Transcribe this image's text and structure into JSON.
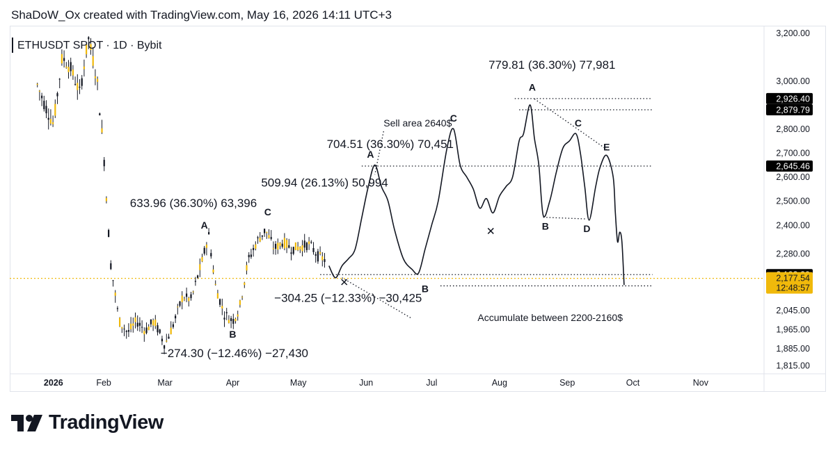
{
  "header": {
    "text": "ShaDoW_Ox created with TradingView.com, May 16, 2026 14:11 UTC+3"
  },
  "footer": {
    "brand": "TradingView",
    "logo_icon": "tradingview-logo-icon"
  },
  "chart_data": {
    "type": "line",
    "symbol_label": "ETHUSDT SPOT · 1D · Bybit",
    "colors": {
      "price_line": "#131722",
      "history_candles": "#f0b90b",
      "history_wicks": "#131722",
      "current_price": "#f0b90b",
      "price_tag": "#000000",
      "dotted": "#131722"
    },
    "ylim": [
      1780,
      3230
    ],
    "x_tick_labels": [
      "2026",
      "Feb",
      "Mar",
      "Apr",
      "May",
      "Jun",
      "Jul",
      "Aug",
      "Sep",
      "Oct",
      "Nov"
    ],
    "y_tick_labels": [
      {
        "value": 3200,
        "label": "3,200.00"
      },
      {
        "value": 3000,
        "label": "3,000.00"
      },
      {
        "value": 2800,
        "label": "2,800.00"
      },
      {
        "value": 2700,
        "label": "2,700.00"
      },
      {
        "value": 2600,
        "label": "2,600.00"
      },
      {
        "value": 2500,
        "label": "2,500.00"
      },
      {
        "value": 2400,
        "label": "2,400.00"
      },
      {
        "value": 2280,
        "label": "2,280.00"
      },
      {
        "value": 2045,
        "label": "2,045.00"
      },
      {
        "value": 1965,
        "label": "1,965.00"
      },
      {
        "value": 1885,
        "label": "1,885.00"
      },
      {
        "value": 1815,
        "label": "1,815.00"
      }
    ],
    "price_tags": [
      {
        "value": 2926.4,
        "label": "2,926.40"
      },
      {
        "value": 2879.79,
        "label": "2,879.79"
      },
      {
        "value": 2645.46,
        "label": "2,645.46"
      },
      {
        "value": 2193.2,
        "label": "2,193.20"
      },
      {
        "value": 2146.33,
        "label": "2,146.33"
      }
    ],
    "current_price": {
      "value": 2177.54,
      "label": "2,177.54",
      "countdown": "12:48:57"
    },
    "horizontal_levels": [
      {
        "value": 2926.4,
        "from": "Aug 8",
        "to": "Oct 10"
      },
      {
        "value": 2879.79,
        "from": "Aug 10",
        "to": "Oct 10"
      },
      {
        "value": 2645.46,
        "from": "May 30",
        "to": "Oct 10"
      },
      {
        "value": 2193.2,
        "from": "May 11",
        "to": "Oct 10"
      },
      {
        "value": 2146.33,
        "from": "Jul 5",
        "to": "Oct 10"
      }
    ],
    "series": [
      {
        "style": "line",
        "points": [
          [
            "May 15",
            2230
          ],
          [
            "May 18",
            2180
          ],
          [
            "May 21",
            2230
          ],
          [
            "May 24",
            2260
          ],
          [
            "May 27",
            2300
          ],
          [
            "May 30",
            2430
          ],
          [
            "Jun 2",
            2560
          ],
          [
            "Jun 5",
            2650
          ],
          [
            "Jun 8",
            2560
          ],
          [
            "Jun 11",
            2500
          ],
          [
            "Jun 14",
            2380
          ],
          [
            "Jun 18",
            2260
          ],
          [
            "Jun 22",
            2215
          ],
          [
            "Jun 25",
            2200
          ],
          [
            "Jun 28",
            2300
          ],
          [
            "Jul 1",
            2400
          ],
          [
            "Jul 4",
            2500
          ],
          [
            "Jul 8",
            2720
          ],
          [
            "Jul 11",
            2800
          ],
          [
            "Jul 14",
            2650
          ],
          [
            "Jul 17",
            2600
          ],
          [
            "Jul 20",
            2550
          ],
          [
            "Jul 23",
            2470
          ],
          [
            "Jul 26",
            2510
          ],
          [
            "Jul 29",
            2450
          ],
          [
            "Aug 1",
            2520
          ],
          [
            "Aug 4",
            2560
          ],
          [
            "Aug 7",
            2600
          ],
          [
            "Aug 10",
            2750
          ],
          [
            "Aug 12",
            2780
          ],
          [
            "Aug 15",
            2900
          ],
          [
            "Aug 17",
            2760
          ],
          [
            "Aug 19",
            2650
          ],
          [
            "Aug 21",
            2440
          ],
          [
            "Aug 24",
            2500
          ],
          [
            "Aug 27",
            2620
          ],
          [
            "Aug 30",
            2720
          ],
          [
            "Sep 2",
            2750
          ],
          [
            "Sep 5",
            2780
          ],
          [
            "Sep 7",
            2700
          ],
          [
            "Sep 9",
            2560
          ],
          [
            "Sep 11",
            2420
          ],
          [
            "Sep 14",
            2560
          ],
          [
            "Sep 16",
            2640
          ],
          [
            "Sep 19",
            2690
          ],
          [
            "Sep 22",
            2600
          ],
          [
            "Sep 23",
            2450
          ],
          [
            "Sep 24",
            2330
          ],
          [
            "Sep 25",
            2370
          ],
          [
            "Sep 26",
            2330
          ],
          [
            "Sep 27",
            2150
          ]
        ]
      },
      {
        "style": "candles",
        "points": [
          [
            "Jan 1",
            3000
          ],
          [
            "Jan 5",
            2900
          ],
          [
            "Jan 9",
            2820
          ],
          [
            "Jan 13",
            3100
          ],
          [
            "Jan 17",
            3050
          ],
          [
            "Jan 21",
            2950
          ],
          [
            "Jan 25",
            3180
          ],
          [
            "Jan 29",
            3000
          ],
          [
            "Feb 1",
            2700
          ],
          [
            "Feb 4",
            2250
          ],
          [
            "Feb 8",
            2000
          ],
          [
            "Feb 12",
            1950
          ],
          [
            "Feb 16",
            2000
          ],
          [
            "Feb 20",
            1960
          ],
          [
            "Feb 24",
            2000
          ],
          [
            "Mar 1",
            1900
          ],
          [
            "Mar 5",
            1990
          ],
          [
            "Mar 9",
            2100
          ],
          [
            "Mar 13",
            2090
          ],
          [
            "Mar 18",
            2250
          ],
          [
            "Mar 21",
            2360
          ],
          [
            "Mar 24",
            2150
          ],
          [
            "Mar 28",
            2030
          ],
          [
            "Apr 1",
            2000
          ],
          [
            "Apr 4",
            2050
          ],
          [
            "Apr 8",
            2250
          ],
          [
            "Apr 12",
            2330
          ],
          [
            "Apr 16",
            2380
          ],
          [
            "Apr 20",
            2300
          ],
          [
            "Apr 24",
            2330
          ],
          [
            "Apr 28",
            2300
          ],
          [
            "May 2",
            2310
          ],
          [
            "May 6",
            2320
          ],
          [
            "May 10",
            2270
          ],
          [
            "May 14",
            2250
          ]
        ]
      }
    ],
    "annotations": [
      {
        "text": "779.81 (36.30%) 77,981",
        "x": "Jul 27",
        "y": 3050
      },
      {
        "text": "704.51 (36.30%) 70,451",
        "x": "May 14",
        "y": 2720
      },
      {
        "text": "509.94 (26.13%) 50,994",
        "x": "Apr 14",
        "y": 2560
      },
      {
        "text": "633.96 (36.30%) 63,396",
        "x": "Feb 13",
        "y": 2475
      },
      {
        "text": "−304.25 (−12.33%) −30,425",
        "x": "Apr 20",
        "y": 2080
      },
      {
        "text": "−274.30 (−12.46%) −27,430",
        "x": "Feb 27",
        "y": 1850
      },
      {
        "text": "Sell area 2640$",
        "x": "Jun 9",
        "y": 2810
      },
      {
        "text": "Accumulate between 2200-2160$",
        "x": "Jul 22",
        "y": 2000
      }
    ],
    "wave_labels": [
      {
        "text": "A",
        "x": "Mar 19",
        "y": 2385
      },
      {
        "text": "B",
        "x": "Apr 1",
        "y": 1930
      },
      {
        "text": "C",
        "x": "Apr 17",
        "y": 2440
      },
      {
        "text": "A",
        "x": "Jun 3",
        "y": 2680
      },
      {
        "text": "B",
        "x": "Jun 28",
        "y": 2120
      },
      {
        "text": "C",
        "x": "Jul 11",
        "y": 2830
      },
      {
        "text": "A",
        "x": "Aug 16",
        "y": 2960
      },
      {
        "text": "B",
        "x": "Aug 22",
        "y": 2380
      },
      {
        "text": "C",
        "x": "Sep 6",
        "y": 2810
      },
      {
        "text": "D",
        "x": "Sep 10",
        "y": 2370
      },
      {
        "text": "E",
        "x": "Sep 19",
        "y": 2710
      }
    ],
    "x_marks": [
      {
        "x": "May 22",
        "y": 2162
      },
      {
        "x": "Jul 28",
        "y": 2375
      }
    ],
    "dotted_connectors": [
      {
        "from": [
          "Jun 9",
          2790
        ],
        "to": [
          "Jun 5",
          2610
        ]
      },
      {
        "from": [
          "May 21",
          2180
        ],
        "to": [
          "Jun 22",
          2010
        ]
      },
      {
        "from": [
          "Aug 17",
          2925
        ],
        "to": [
          "Sep 19",
          2715
        ]
      },
      {
        "from": [
          "Aug 21",
          2432
        ],
        "to": [
          "Sep 10",
          2425
        ]
      }
    ]
  }
}
